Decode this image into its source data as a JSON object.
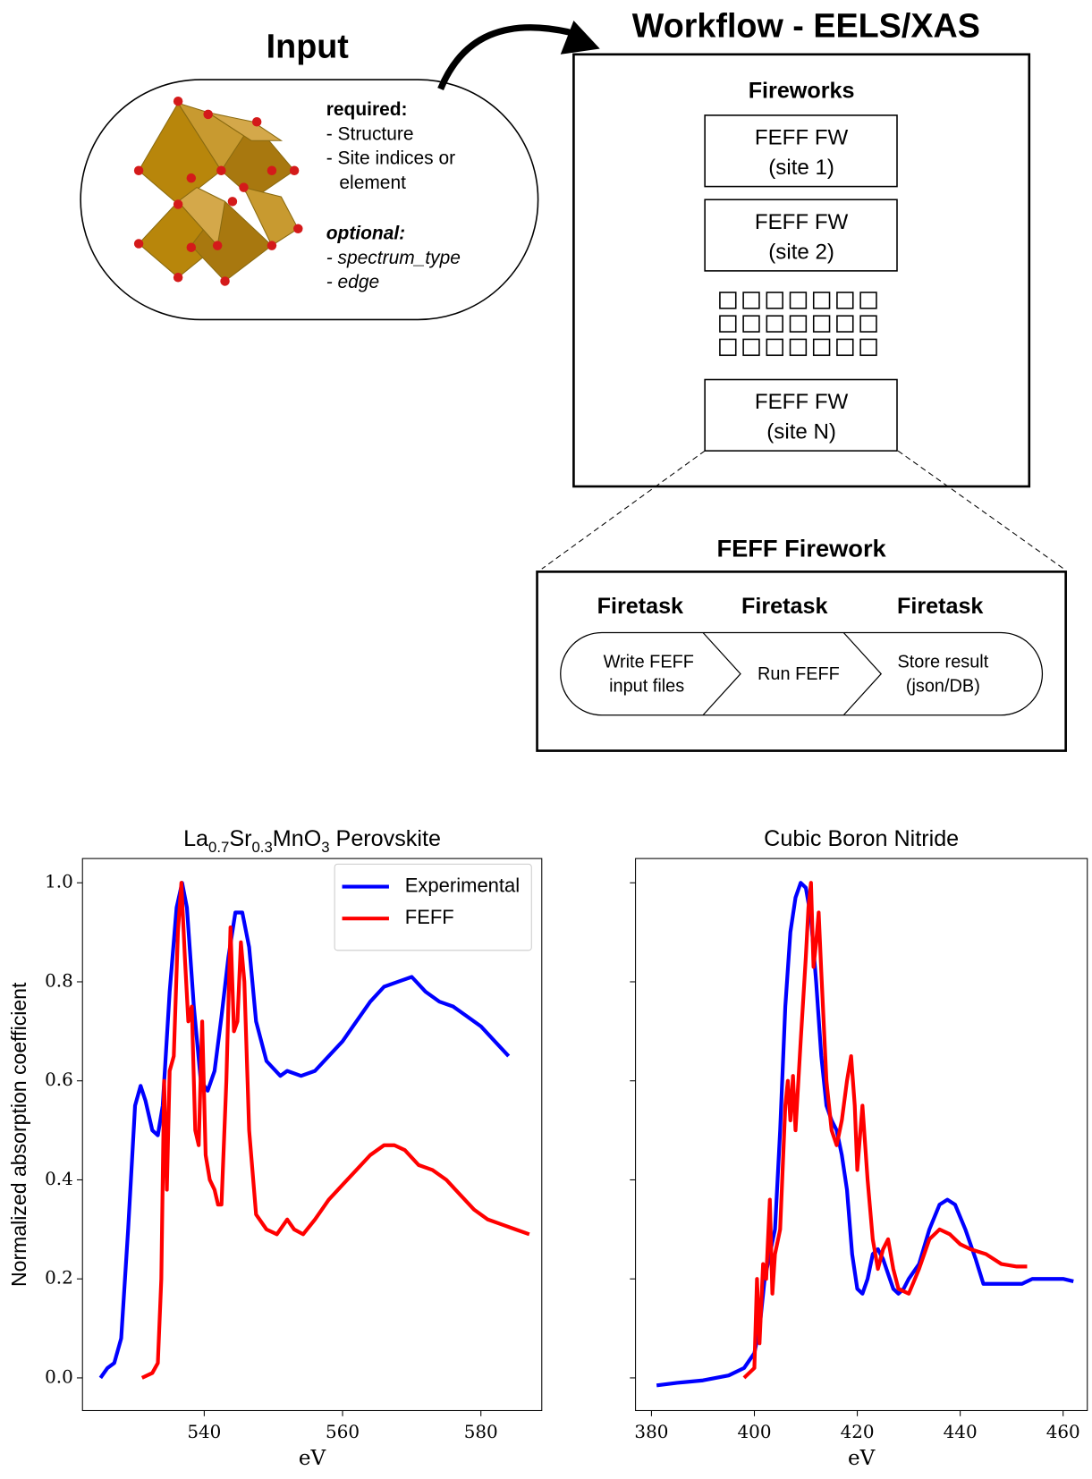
{
  "diagram": {
    "input": {
      "title": "Input",
      "required_label": "required:",
      "required_items": [
        "- Structure",
        "- Site indices or",
        "element"
      ],
      "optional_label": "optional:",
      "optional_items": [
        "- spectrum_type",
        "- edge"
      ]
    },
    "workflow": {
      "title": "Workflow - EELS/XAS",
      "fireworks_title": "Fireworks",
      "fws": [
        [
          "FEFF FW",
          "(site 1)"
        ],
        [
          "FEFF FW",
          "(site 2)"
        ],
        [
          "FEFF FW",
          "(site N)"
        ]
      ]
    },
    "firework": {
      "title": "FEFF Firework",
      "task_headers": [
        "Firetask",
        "Firetask",
        "Firetask"
      ],
      "tasks": [
        [
          "Write FEFF",
          "input files"
        ],
        [
          "Run FEFF"
        ],
        [
          "Store result",
          "(json/DB)"
        ]
      ]
    }
  },
  "chart_data": [
    {
      "type": "line",
      "title": [
        "La",
        "0.7",
        "Sr",
        "0.3",
        "MnO",
        "3",
        " Perovskite"
      ],
      "xlabel": "eV",
      "ylabel": "Normalized absorption coefficient",
      "xlim": [
        522.4,
        588.8
      ],
      "ylim": [
        -0.066,
        1.049
      ],
      "xticks": [
        540,
        560,
        580
      ],
      "yticks": [
        {
          "value": 0,
          "label": "0.0"
        },
        0.2,
        0.4,
        0.6,
        0.8,
        {
          "value": 1,
          "label": "1.0"
        }
      ],
      "ytick_labels": true,
      "legend": "upper right",
      "series": [
        {
          "name": "Experimental",
          "color": "#0000ff",
          "x": [
            525,
            526,
            527,
            528,
            529,
            530,
            530.8,
            531.5,
            532.5,
            533.3,
            534,
            535,
            536,
            536.8,
            537.5,
            538.5,
            539.5,
            540.5,
            541.5,
            542.5,
            543.5,
            544.5,
            545.5,
            546.5,
            547.5,
            549,
            551,
            552,
            554,
            556,
            558,
            560,
            562,
            564,
            566,
            568,
            570,
            572,
            574,
            576,
            578,
            580,
            582,
            584
          ],
          "values": [
            0,
            0.02,
            0.03,
            0.08,
            0.3,
            0.55,
            0.59,
            0.56,
            0.5,
            0.49,
            0.55,
            0.78,
            0.95,
            1.0,
            0.95,
            0.75,
            0.6,
            0.58,
            0.62,
            0.73,
            0.85,
            0.94,
            0.94,
            0.87,
            0.72,
            0.64,
            0.61,
            0.62,
            0.61,
            0.62,
            0.65,
            0.68,
            0.72,
            0.76,
            0.79,
            0.8,
            0.81,
            0.78,
            0.76,
            0.75,
            0.73,
            0.71,
            0.68,
            0.65
          ]
        },
        {
          "name": "FEFF",
          "color": "#ff0000",
          "x": [
            531,
            532.5,
            533.3,
            533.8,
            534.2,
            534.6,
            535,
            535.6,
            536.2,
            536.7,
            537.2,
            537.7,
            538.2,
            538.7,
            539.2,
            539.7,
            540.2,
            540.8,
            541.5,
            542,
            542.5,
            543.2,
            543.8,
            544.3,
            544.8,
            545.3,
            545.8,
            546.5,
            547.5,
            549,
            550.5,
            552,
            553,
            554.3,
            556,
            558,
            560,
            562,
            564,
            566,
            567.5,
            569,
            571,
            573,
            575,
            577,
            579,
            581,
            583,
            585,
            587
          ],
          "values": [
            0,
            0.01,
            0.03,
            0.2,
            0.6,
            0.38,
            0.62,
            0.65,
            0.9,
            1.0,
            0.85,
            0.72,
            0.75,
            0.5,
            0.47,
            0.72,
            0.45,
            0.4,
            0.38,
            0.35,
            0.35,
            0.6,
            0.91,
            0.7,
            0.72,
            0.88,
            0.8,
            0.5,
            0.33,
            0.3,
            0.29,
            0.32,
            0.3,
            0.29,
            0.32,
            0.36,
            0.39,
            0.42,
            0.45,
            0.47,
            0.47,
            0.46,
            0.43,
            0.42,
            0.4,
            0.37,
            0.34,
            0.32,
            0.31,
            0.3,
            0.29
          ]
        }
      ]
    },
    {
      "type": "line",
      "title": "Cubic Boron Nitride",
      "xlabel": "eV",
      "xlim": [
        376.9,
        464.7
      ],
      "ylim": [
        -0.066,
        1.049
      ],
      "xticks": [
        380,
        400,
        420,
        440,
        460
      ],
      "yticks": [
        0,
        0.2,
        0.4,
        0.6,
        0.8,
        1
      ],
      "ytick_labels": false,
      "series": [
        {
          "color": "#0000ff",
          "x": [
            381,
            385,
            390,
            395,
            398,
            400,
            401,
            402,
            403,
            404,
            405,
            406,
            407,
            408,
            409,
            410,
            411,
            412,
            413,
            414,
            415,
            416,
            417,
            418,
            419,
            420,
            421,
            422,
            423,
            424,
            425,
            426,
            427,
            428,
            429,
            430,
            432,
            434,
            436,
            437.5,
            439,
            441,
            443,
            444.5,
            446,
            450,
            452,
            454,
            457,
            460,
            462
          ],
          "values": [
            -0.015,
            -0.01,
            -0.005,
            0.005,
            0.02,
            0.05,
            0.1,
            0.2,
            0.25,
            0.3,
            0.5,
            0.75,
            0.9,
            0.97,
            1.0,
            0.99,
            0.93,
            0.8,
            0.65,
            0.55,
            0.52,
            0.5,
            0.45,
            0.38,
            0.25,
            0.18,
            0.17,
            0.2,
            0.25,
            0.26,
            0.24,
            0.21,
            0.18,
            0.17,
            0.18,
            0.2,
            0.23,
            0.3,
            0.35,
            0.36,
            0.35,
            0.3,
            0.24,
            0.19,
            0.19,
            0.19,
            0.19,
            0.2,
            0.2,
            0.2,
            0.195
          ]
        },
        {
          "color": "#ff0000",
          "x": [
            398,
            400,
            400.5,
            401,
            401.7,
            402.3,
            403,
            403.5,
            404,
            405,
            406,
            406.5,
            407,
            407.5,
            408,
            409,
            410,
            410.5,
            411,
            411.5,
            412,
            412.5,
            413,
            414,
            415,
            416,
            417,
            418,
            418.8,
            419.5,
            420,
            421,
            422,
            423,
            424,
            425,
            426,
            427,
            428,
            430,
            432,
            434,
            436,
            438,
            440,
            442,
            445,
            448,
            451,
            453
          ],
          "values": [
            0,
            0.02,
            0.2,
            0.07,
            0.23,
            0.2,
            0.36,
            0.17,
            0.25,
            0.3,
            0.55,
            0.6,
            0.52,
            0.61,
            0.5,
            0.68,
            0.85,
            0.95,
            1.0,
            0.83,
            0.88,
            0.94,
            0.82,
            0.6,
            0.5,
            0.47,
            0.52,
            0.6,
            0.65,
            0.55,
            0.42,
            0.55,
            0.4,
            0.28,
            0.22,
            0.26,
            0.28,
            0.22,
            0.18,
            0.17,
            0.22,
            0.28,
            0.3,
            0.29,
            0.27,
            0.26,
            0.25,
            0.23,
            0.225,
            0.225
          ]
        }
      ]
    }
  ]
}
